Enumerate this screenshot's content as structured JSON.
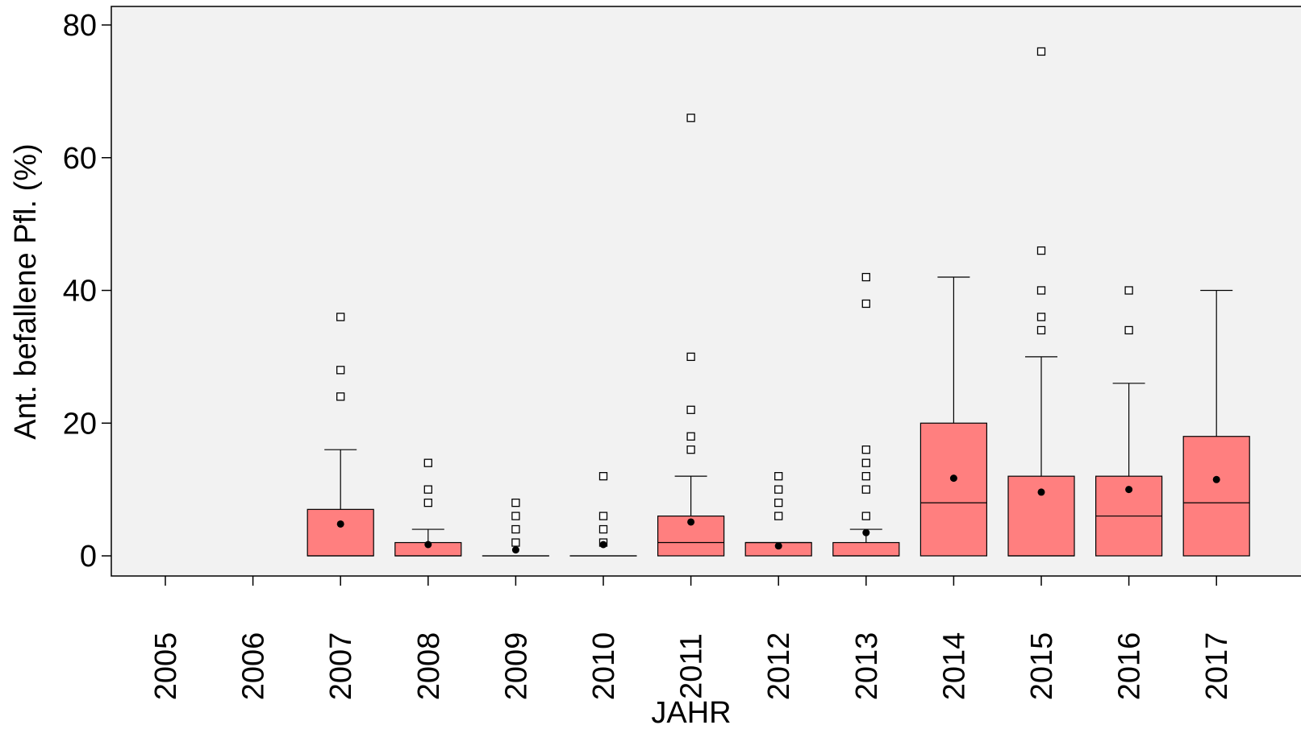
{
  "chart_data": {
    "type": "boxplot",
    "xlabel": "JAHR",
    "ylabel": "Ant. befallene Pfl.  (%)",
    "ylim": [
      -3,
      83
    ],
    "yticks": [
      0,
      20,
      40,
      60,
      80
    ],
    "grid": false,
    "plot_background": "#f2f2f2",
    "box_color": "#ff7f7f",
    "categories": [
      "2005",
      "2006",
      "2007",
      "2008",
      "2009",
      "2010",
      "2011",
      "2012",
      "2013",
      "2014",
      "2015",
      "2016",
      "2017"
    ],
    "boxes": [
      null,
      null,
      {
        "min": 0,
        "q1": 0,
        "median": 0,
        "q3": 7,
        "max": 16,
        "mean": 4.8,
        "outliers": [
          24,
          28,
          36
        ]
      },
      {
        "min": 0,
        "q1": 0,
        "median": 0,
        "q3": 2,
        "max": 4,
        "mean": 1.7,
        "outliers": [
          8,
          10,
          14
        ]
      },
      {
        "min": 0,
        "q1": 0,
        "median": 0,
        "q3": 0,
        "max": 0,
        "mean": 0.9,
        "outliers": [
          2,
          4,
          6,
          8
        ]
      },
      {
        "min": 0,
        "q1": 0,
        "median": 0,
        "q3": 0,
        "max": 0,
        "mean": 1.7,
        "outliers": [
          2,
          4,
          6,
          12
        ]
      },
      {
        "min": 0,
        "q1": 0,
        "median": 2,
        "q3": 6,
        "max": 12,
        "mean": 5.1,
        "outliers": [
          16,
          18,
          22,
          30,
          66
        ]
      },
      {
        "min": 0,
        "q1": 0,
        "median": 2,
        "q3": 2,
        "max": 2,
        "mean": 1.5,
        "outliers": [
          6,
          8,
          10,
          12
        ]
      },
      {
        "min": 0,
        "q1": 0,
        "median": 0,
        "q3": 2,
        "max": 4,
        "mean": 3.5,
        "outliers": [
          6,
          10,
          12,
          14,
          16,
          38,
          42
        ]
      },
      {
        "min": 0,
        "q1": 0,
        "median": 8,
        "q3": 20,
        "max": 42,
        "mean": 11.7,
        "outliers": []
      },
      {
        "min": 0,
        "q1": 0,
        "median": 0,
        "q3": 12,
        "max": 30,
        "mean": 9.6,
        "outliers": [
          34,
          36,
          40,
          46,
          76
        ]
      },
      {
        "min": 0,
        "q1": 0,
        "median": 6,
        "q3": 12,
        "max": 26,
        "mean": 10.0,
        "outliers": [
          34,
          40
        ]
      },
      {
        "min": 0,
        "q1": 0,
        "median": 8,
        "q3": 18,
        "max": 40,
        "mean": 11.5,
        "outliers": []
      }
    ]
  }
}
